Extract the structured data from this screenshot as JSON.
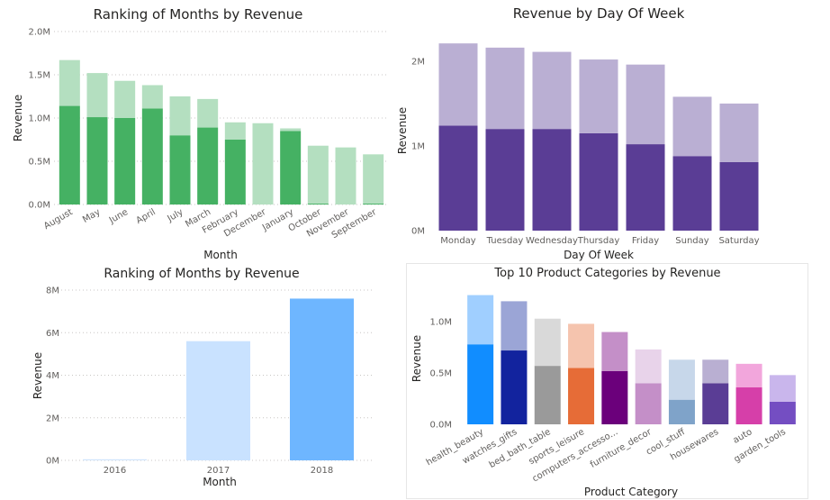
{
  "chart_data": [
    {
      "type": "bar",
      "title": "Ranking of Months by Revenue",
      "xlabel": "Month",
      "ylabel": "Revenue",
      "ylim": [
        0,
        2.0
      ],
      "yticks": [
        "0.0M",
        "0.5M",
        "1.0M",
        "1.5M",
        "2.0M"
      ],
      "grid": true,
      "categories": [
        "August",
        "May",
        "June",
        "April",
        "July",
        "March",
        "February",
        "December",
        "January",
        "October",
        "November",
        "September"
      ],
      "series": [
        {
          "values": [
            1.14,
            1.01,
            1.0,
            1.11,
            0.8,
            0.89,
            0.75,
            0,
            0.85,
            0.01,
            0,
            0.01
          ]
        },
        {
          "values": [
            0.53,
            0.51,
            0.43,
            0.27,
            0.45,
            0.33,
            0.2,
            0.94,
            0.03,
            0.67,
            0.66,
            0.57
          ]
        }
      ],
      "colors": [
        "#45b163",
        "#b4dfc0"
      ]
    },
    {
      "type": "bar",
      "title": "Revenue by Day Of Week",
      "xlabel": "Day Of Week",
      "ylabel": "Revenue",
      "ylim": [
        0,
        2.35
      ],
      "yticks": [
        "0M",
        "1M",
        "2M"
      ],
      "grid": false,
      "categories": [
        "Monday",
        "Tuesday",
        "Wednesday",
        "Thursday",
        "Friday",
        "Sunday",
        "Saturday"
      ],
      "series": [
        {
          "values": [
            1.24,
            1.2,
            1.2,
            1.15,
            1.02,
            0.88,
            0.81
          ]
        },
        {
          "values": [
            0.97,
            0.96,
            0.91,
            0.87,
            0.94,
            0.7,
            0.69
          ]
        }
      ],
      "colors": [
        "#5a3d95",
        "#baafd3"
      ]
    },
    {
      "type": "bar",
      "title": "Ranking of Months by Revenue",
      "xlabel": "Month",
      "ylabel": "Revenue",
      "ylim": [
        0,
        8
      ],
      "yticks": [
        "0M",
        "2M",
        "4M",
        "6M",
        "8M"
      ],
      "grid": true,
      "categories": [
        "2016",
        "2017",
        "2018"
      ],
      "values": [
        0.05,
        5.6,
        7.6
      ],
      "bar_colors": [
        "#cfe5fc",
        "#c9e2ff",
        "#6eb6ff"
      ]
    },
    {
      "type": "bar",
      "title": "Top 10 Product Categories by Revenue",
      "xlabel": "Product Category",
      "ylabel": "Revenue",
      "ylim": [
        0,
        1.3
      ],
      "yticks": [
        "0.0M",
        "0.5M",
        "1.0M"
      ],
      "grid": false,
      "categories": [
        "health_beauty",
        "watches_gifts",
        "bed_bath_table",
        "sports_leisure",
        "computers_accesso...",
        "furniture_decor",
        "cool_stuff",
        "housewares",
        "auto",
        "garden_tools"
      ],
      "series": [
        {
          "values": [
            0.78,
            0.72,
            0.57,
            0.55,
            0.52,
            0.4,
            0.24,
            0.4,
            0.36,
            0.22
          ]
        },
        {
          "values": [
            0.48,
            0.48,
            0.46,
            0.43,
            0.38,
            0.33,
            0.39,
            0.23,
            0.23,
            0.26
          ]
        }
      ],
      "bottom_colors": [
        "#118dff",
        "#12239e",
        "#9a9a9a",
        "#e66c37",
        "#6b007b",
        "#c48fc8",
        "#7fa3c9",
        "#5a3d95",
        "#d63fa9",
        "#744ec2"
      ],
      "top_colors": [
        "#a0cfff",
        "#9ba5d6",
        "#d9d9d9",
        "#f5c4ae",
        "#c48fc8",
        "#e8d3ea",
        "#c7d7ea",
        "#b9afd2",
        "#f2a6dc",
        "#c9b6ec"
      ]
    }
  ]
}
